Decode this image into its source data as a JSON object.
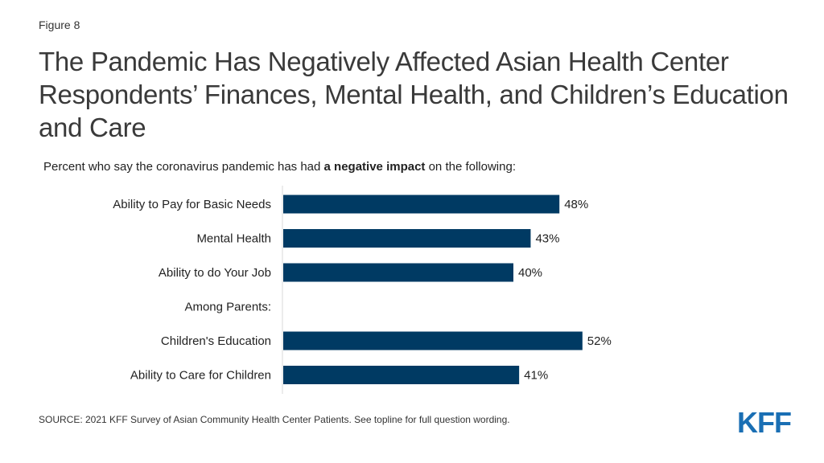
{
  "figure_label": "Figure 8",
  "title": "The Pandemic Has Negatively Affected Asian Health Center Respondents’ Finances, Mental Health, and Children’s Education and Care",
  "subtitle": {
    "prefix": "Percent who say the coronavirus pandemic  has had ",
    "bold": "a negative impact",
    "suffix": " on the following:"
  },
  "source": "SOURCE: 2021 KFF Survey of Asian Community Health Center Patients. See topline for full question wording.",
  "logo_text": "KFF",
  "colors": {
    "bar": "#003a63",
    "axis": "#d9d9d9",
    "logo": "#1a6fb4"
  },
  "chart_data": {
    "type": "bar",
    "orientation": "horizontal",
    "categories": [
      "Ability to Pay for Basic Needs",
      "Mental Health",
      "Ability to do Your Job",
      "Among Parents:",
      "Children's Education",
      "Ability to Care for Children"
    ],
    "values": [
      48,
      43,
      40,
      null,
      52,
      41
    ],
    "data_labels": [
      "48%",
      "43%",
      "40%",
      "",
      "52%",
      "41%"
    ],
    "xlim": [
      0,
      100
    ],
    "xlabel": "",
    "ylabel": "",
    "grid": false
  }
}
